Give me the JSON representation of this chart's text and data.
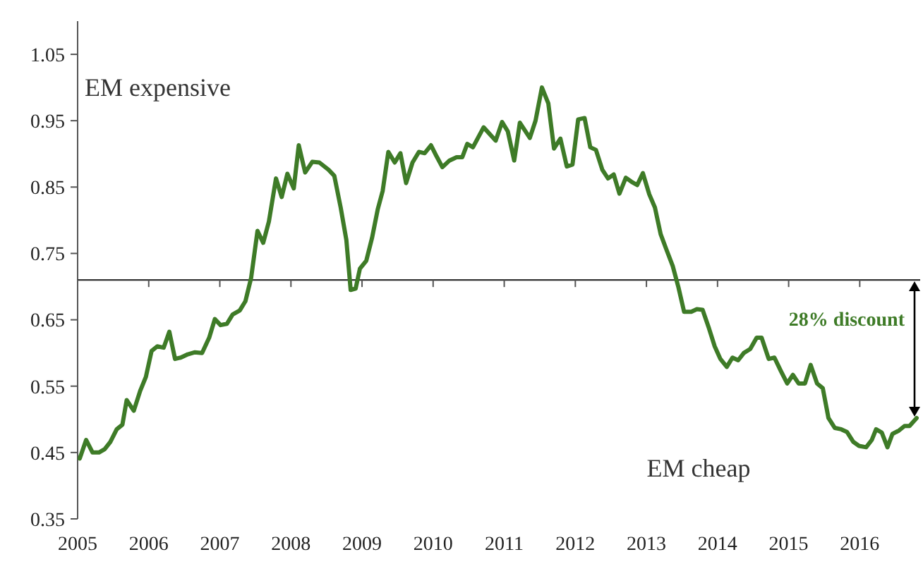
{
  "chart_data": {
    "type": "line",
    "x": [
      2005.03,
      2005.12,
      2005.21,
      2005.3,
      2005.38,
      2005.46,
      2005.55,
      2005.63,
      2005.69,
      2005.79,
      2005.88,
      2005.96,
      2006.04,
      2006.12,
      2006.21,
      2006.29,
      2006.37,
      2006.45,
      2006.55,
      2006.65,
      2006.75,
      2006.85,
      2006.93,
      2007.01,
      2007.1,
      2007.18,
      2007.28,
      2007.36,
      2007.44,
      2007.53,
      2007.61,
      2007.69,
      2007.79,
      2007.87,
      2007.95,
      2008.04,
      2008.11,
      2008.2,
      2008.3,
      2008.4,
      2008.53,
      2008.61,
      2008.7,
      2008.78,
      2008.84,
      2008.91,
      2008.97,
      2009.06,
      2009.14,
      2009.22,
      2009.29,
      2009.37,
      2009.46,
      2009.54,
      2009.62,
      2009.71,
      2009.8,
      2009.88,
      2009.97,
      2010.05,
      2010.13,
      2010.23,
      2010.33,
      2010.41,
      2010.48,
      2010.56,
      2010.71,
      2010.88,
      2010.97,
      2011.05,
      2011.14,
      2011.22,
      2011.36,
      2011.44,
      2011.53,
      2011.62,
      2011.7,
      2011.79,
      2011.88,
      2011.96,
      2012.04,
      2012.13,
      2012.21,
      2012.29,
      2012.38,
      2012.46,
      2012.54,
      2012.62,
      2012.71,
      2012.79,
      2012.87,
      2012.95,
      2013.04,
      2013.12,
      2013.2,
      2013.28,
      2013.37,
      2013.45,
      2013.53,
      2013.63,
      2013.71,
      2013.79,
      2013.88,
      2013.96,
      2014.04,
      2014.13,
      2014.21,
      2014.29,
      2014.37,
      2014.46,
      2014.55,
      2014.62,
      2014.72,
      2014.8,
      2014.89,
      2014.98,
      2015.06,
      2015.14,
      2015.23,
      2015.31,
      2015.4,
      2015.48,
      2015.56,
      2015.65,
      2015.74,
      2015.82,
      2015.91,
      2015.99,
      2016.09,
      2016.17,
      2016.23,
      2016.31,
      2016.39,
      2016.46,
      2016.55,
      2016.63,
      2016.7,
      2016.8
    ],
    "series": [
      {
        "color": "#3e7b27",
        "values": [
          0.441,
          0.469,
          0.45,
          0.45,
          0.455,
          0.466,
          0.485,
          0.492,
          0.529,
          0.513,
          0.543,
          0.564,
          0.603,
          0.61,
          0.608,
          0.632,
          0.591,
          0.593,
          0.598,
          0.601,
          0.6,
          0.623,
          0.651,
          0.642,
          0.644,
          0.658,
          0.664,
          0.678,
          0.713,
          0.784,
          0.766,
          0.798,
          0.863,
          0.835,
          0.87,
          0.848,
          0.913,
          0.872,
          0.888,
          0.887,
          0.876,
          0.867,
          0.819,
          0.77,
          0.695,
          0.697,
          0.727,
          0.739,
          0.773,
          0.816,
          0.844,
          0.903,
          0.887,
          0.901,
          0.856,
          0.887,
          0.903,
          0.901,
          0.913,
          0.896,
          0.88,
          0.89,
          0.895,
          0.895,
          0.915,
          0.91,
          0.94,
          0.92,
          0.948,
          0.934,
          0.89,
          0.947,
          0.924,
          0.95,
          1.0,
          0.976,
          0.908,
          0.923,
          0.881,
          0.884,
          0.952,
          0.954,
          0.91,
          0.906,
          0.876,
          0.863,
          0.869,
          0.84,
          0.864,
          0.858,
          0.853,
          0.871,
          0.839,
          0.819,
          0.779,
          0.756,
          0.731,
          0.699,
          0.662,
          0.662,
          0.666,
          0.665,
          0.637,
          0.61,
          0.591,
          0.579,
          0.593,
          0.589,
          0.6,
          0.606,
          0.623,
          0.623,
          0.591,
          0.593,
          0.573,
          0.554,
          0.567,
          0.554,
          0.554,
          0.582,
          0.554,
          0.547,
          0.502,
          0.487,
          0.485,
          0.481,
          0.466,
          0.46,
          0.458,
          0.469,
          0.485,
          0.48,
          0.458,
          0.478,
          0.483,
          0.49,
          0.49,
          0.502
        ]
      }
    ],
    "xlim": [
      2005,
      2016.85
    ],
    "xticks": [
      2005,
      2006,
      2007,
      2008,
      2009,
      2010,
      2011,
      2012,
      2013,
      2014,
      2015,
      2016
    ],
    "ylim": [
      0.35,
      1.1
    ],
    "yticks": [
      {
        "value": 0.35,
        "label": "0.35"
      },
      {
        "value": 0.45,
        "label": "0.45"
      },
      {
        "value": 0.55,
        "label": "0.55"
      },
      {
        "value": 0.65,
        "label": "0.65"
      },
      {
        "value": 0.75,
        "label": "0.75"
      },
      {
        "value": 0.85,
        "label": "0.85"
      },
      {
        "value": 0.95,
        "label": "0.95"
      },
      {
        "value": 1.05,
        "label": "1.05"
      }
    ],
    "ref_lines": [
      {
        "axis": "y",
        "value": 0.71
      }
    ],
    "annotations": [
      "EM expensive",
      "EM cheap",
      "28% discount"
    ],
    "grid": false,
    "marker": "none",
    "line_style": "solid"
  }
}
